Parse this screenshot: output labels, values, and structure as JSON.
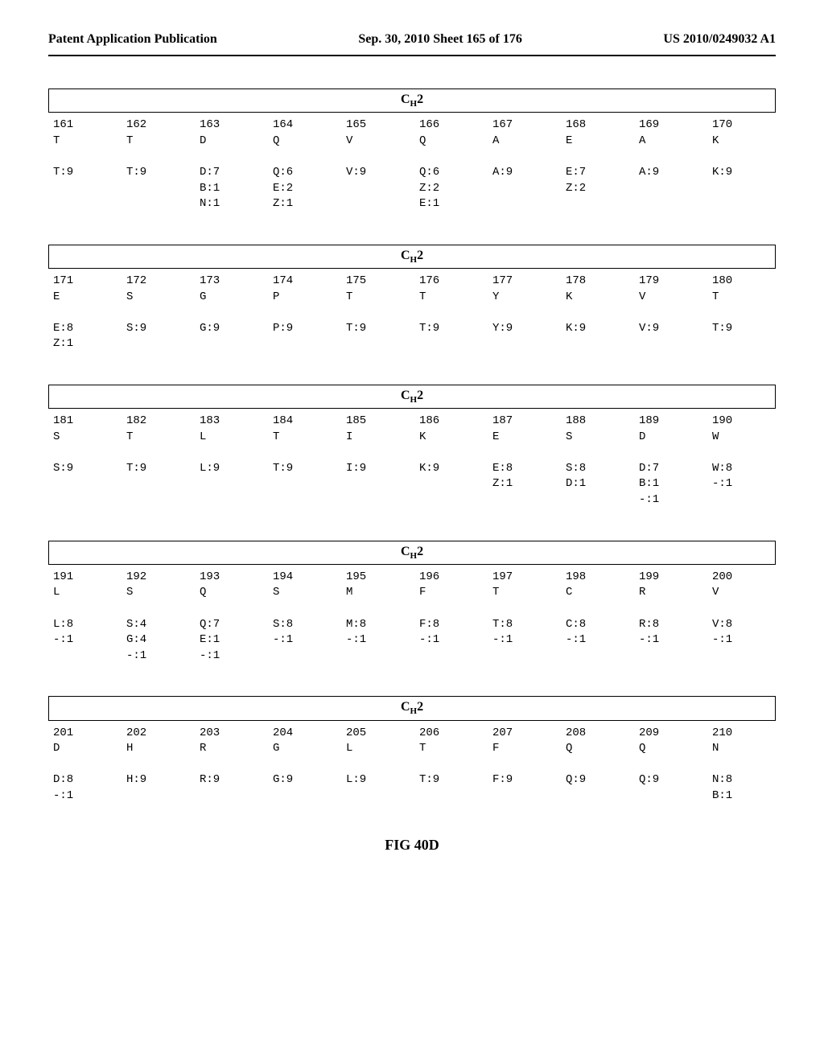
{
  "header": {
    "left": "Patent Application Publication",
    "center": "Sep. 30, 2010  Sheet 165 of 176",
    "right": "US 2010/0249032 A1"
  },
  "region_label_html": "C<sub>H</sub>2",
  "figure_label": "FIG 40D",
  "blocks": [
    {
      "positions": [
        "161",
        "162",
        "163",
        "164",
        "165",
        "166",
        "167",
        "168",
        "169",
        "170"
      ],
      "consensus": [
        "T",
        "T",
        "D",
        "Q",
        "V",
        "Q",
        "A",
        "E",
        "A",
        "K"
      ],
      "variants": [
        [
          "T:9"
        ],
        [
          "T:9"
        ],
        [
          "D:7",
          "B:1",
          "N:1"
        ],
        [
          "Q:6",
          "E:2",
          "Z:1"
        ],
        [
          "V:9"
        ],
        [
          "Q:6",
          "Z:2",
          "E:1"
        ],
        [
          "A:9"
        ],
        [
          "E:7",
          "Z:2"
        ],
        [
          "A:9"
        ],
        [
          "K:9"
        ]
      ]
    },
    {
      "positions": [
        "171",
        "172",
        "173",
        "174",
        "175",
        "176",
        "177",
        "178",
        "179",
        "180"
      ],
      "consensus": [
        "E",
        "S",
        "G",
        "P",
        "T",
        "T",
        "Y",
        "K",
        "V",
        "T"
      ],
      "variants": [
        [
          "E:8",
          "Z:1"
        ],
        [
          "S:9"
        ],
        [
          "G:9"
        ],
        [
          "P:9"
        ],
        [
          "T:9"
        ],
        [
          "T:9"
        ],
        [
          "Y:9"
        ],
        [
          "K:9"
        ],
        [
          "V:9"
        ],
        [
          "T:9"
        ]
      ]
    },
    {
      "positions": [
        "181",
        "182",
        "183",
        "184",
        "185",
        "186",
        "187",
        "188",
        "189",
        "190"
      ],
      "consensus": [
        "S",
        "T",
        "L",
        "T",
        "I",
        "K",
        "E",
        "S",
        "D",
        "W"
      ],
      "variants": [
        [
          "S:9"
        ],
        [
          "T:9"
        ],
        [
          "L:9"
        ],
        [
          "T:9"
        ],
        [
          "I:9"
        ],
        [
          "K:9"
        ],
        [
          "E:8",
          "Z:1"
        ],
        [
          "S:8",
          "D:1"
        ],
        [
          "D:7",
          "B:1",
          "-:1"
        ],
        [
          "W:8",
          "-:1"
        ]
      ]
    },
    {
      "positions": [
        "191",
        "192",
        "193",
        "194",
        "195",
        "196",
        "197",
        "198",
        "199",
        "200"
      ],
      "consensus": [
        "L",
        "S",
        "Q",
        "S",
        "M",
        "F",
        "T",
        "C",
        "R",
        "V"
      ],
      "variants": [
        [
          "L:8",
          "-:1"
        ],
        [
          "S:4",
          "G:4",
          "-:1"
        ],
        [
          "Q:7",
          "E:1",
          "-:1"
        ],
        [
          "S:8",
          "-:1"
        ],
        [
          "M:8",
          "-:1"
        ],
        [
          "F:8",
          "-:1"
        ],
        [
          "T:8",
          "-:1"
        ],
        [
          "C:8",
          "-:1"
        ],
        [
          "R:8",
          "-:1"
        ],
        [
          "V:8",
          "-:1"
        ]
      ]
    },
    {
      "positions": [
        "201",
        "202",
        "203",
        "204",
        "205",
        "206",
        "207",
        "208",
        "209",
        "210"
      ],
      "consensus": [
        "D",
        "H",
        "R",
        "G",
        "L",
        "T",
        "F",
        "Q",
        "Q",
        "N"
      ],
      "variants": [
        [
          "D:8",
          "-:1"
        ],
        [
          "H:9"
        ],
        [
          "R:9"
        ],
        [
          "G:9"
        ],
        [
          "L:9"
        ],
        [
          "T:9"
        ],
        [
          "F:9"
        ],
        [
          "Q:9"
        ],
        [
          "Q:9"
        ],
        [
          "N:8",
          "B:1"
        ]
      ]
    }
  ]
}
